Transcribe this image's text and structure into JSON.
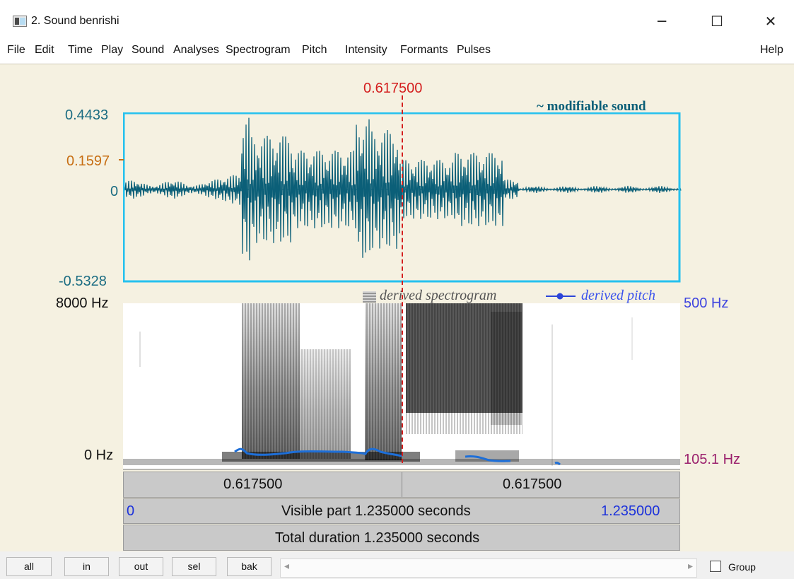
{
  "window": {
    "title": "2. Sound benrishi",
    "minimize_glyph": "─",
    "maximize_glyph": "☐",
    "close_glyph": "✕"
  },
  "menu": [
    "File",
    "Edit",
    "Time",
    "Play",
    "Sound",
    "Analyses",
    "Spectrogram",
    "Pitch",
    "Intensity",
    "Formants",
    "Pulses",
    "Help"
  ],
  "cursor": {
    "time_label": "0.617500",
    "color": "#d41f1f"
  },
  "waveform": {
    "max_label": "0.4433",
    "mid_label": "0.1597",
    "zero_label": "0",
    "min_label": "-0.5328",
    "legend": "~ modifiable sound",
    "wave_color": "#0b5f78",
    "frame_color": "#25c1ee",
    "value_color": "#c76e12"
  },
  "spectrogram": {
    "top_label": "8000 Hz",
    "bottom_label": "0 Hz",
    "legend_spectrogram": "derived spectrogram",
    "legend_pitch": "derived pitch",
    "pitch_top_label": "500 Hz",
    "pitch_value_label": "105.1 Hz",
    "pitch_color": "#1e6fd8",
    "pitch_label_color": "#9b216d"
  },
  "time_bars": {
    "left_selection": "0.617500",
    "right_selection": "0.617500",
    "visible_start": "0",
    "visible_label": "Visible part 1.235000 seconds",
    "visible_end": "1.235000",
    "total_label": "Total duration 1.235000 seconds"
  },
  "bottom_buttons": [
    "all",
    "in",
    "out",
    "sel",
    "bak"
  ],
  "group_label": "Group"
}
